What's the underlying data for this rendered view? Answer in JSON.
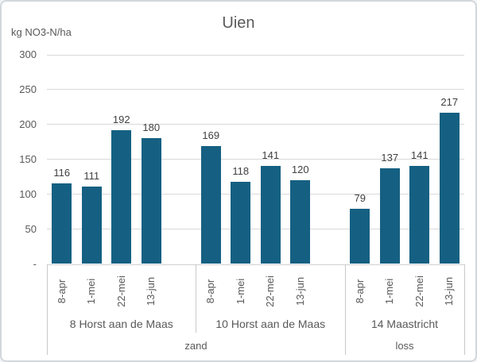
{
  "chart": {
    "colors": {
      "bar": "#156082",
      "gridline": "#d9d9d9",
      "table_border": "#c9c9c9",
      "axis_text": "#595959",
      "value_label_text": "#404040",
      "card_border": "#d2d7dc"
    },
    "y_ticks": [
      {
        "label": "300",
        "value": 300
      },
      {
        "label": "250",
        "value": 250
      },
      {
        "label": "200",
        "value": 200
      },
      {
        "label": "150",
        "value": 150
      },
      {
        "label": "100",
        "value": 100
      },
      {
        "label": "50",
        "value": 50
      },
      {
        "label": "-",
        "value": 0
      }
    ]
  },
  "chart_data": {
    "type": "bar",
    "title": "Uien",
    "ylabel": "kg NO3-N/ha",
    "xlabel": "",
    "ylim": [
      0,
      300
    ],
    "grid": true,
    "legend": false,
    "categories": [
      "8-apr",
      "1-mei",
      "22-mei",
      "13-jun"
    ],
    "groups": [
      {
        "location": "8 Horst aan de Maas",
        "soil": "zand",
        "values": [
          116,
          111,
          192,
          180
        ]
      },
      {
        "location": "10 Horst aan de Maas",
        "soil": "zand",
        "values": [
          169,
          118,
          141,
          120
        ]
      },
      {
        "location": "14 Maastricht",
        "soil": "loss",
        "values": [
          79,
          137,
          141,
          217
        ]
      }
    ],
    "soil_spans": [
      {
        "label": "zand",
        "group_indexes": [
          0,
          1
        ]
      },
      {
        "label": "loss",
        "group_indexes": [
          2
        ]
      }
    ]
  }
}
